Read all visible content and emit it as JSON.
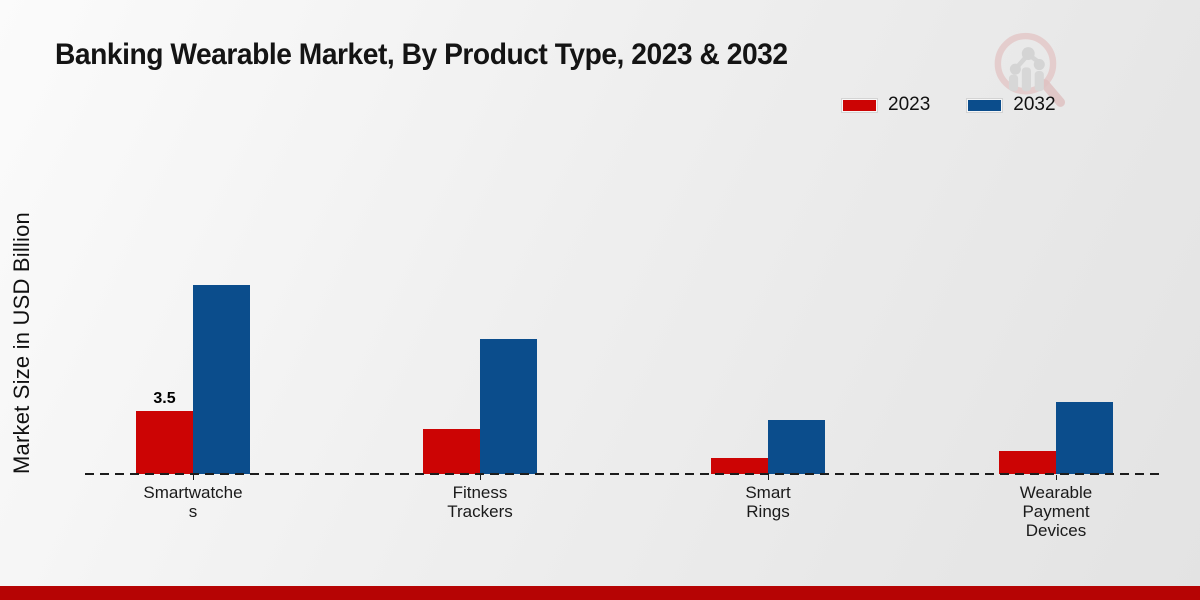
{
  "header": {
    "title": "Banking Wearable Market, By Product Type, 2023 & 2032"
  },
  "legend": {
    "items": [
      {
        "label": "2023",
        "color": "#cc0404"
      },
      {
        "label": "2032",
        "color": "#0b4d8c"
      }
    ]
  },
  "y_axis": {
    "title": "Market Size in USD Billion"
  },
  "chart_data": {
    "type": "bar",
    "title": "Banking Wearable Market, By Product Type, 2023 & 2032",
    "xlabel": "",
    "ylabel": "Market Size in USD Billion",
    "categories": [
      "Smartwatches",
      "Fitness Trackers",
      "Smart Rings",
      "Wearable Payment Devices"
    ],
    "category_display_lines": [
      [
        "Smartwatche",
        "s"
      ],
      [
        "Fitness",
        "Trackers"
      ],
      [
        "Smart",
        "Rings"
      ],
      [
        "Wearable",
        "Payment",
        "Devices"
      ]
    ],
    "series": [
      {
        "name": "2023",
        "color": "#cc0404",
        "values": [
          3.5,
          2.5,
          0.9,
          1.3
        ]
      },
      {
        "name": "2032",
        "color": "#0b4d8c",
        "values": [
          10.5,
          7.5,
          3.0,
          4.0
        ]
      }
    ],
    "data_labels": [
      {
        "category_index": 0,
        "series_index": 0,
        "text": "3.5"
      }
    ],
    "ylim": [
      0,
      11
    ],
    "grid": false,
    "legend_position": "top-right",
    "baseline_style": "dashed"
  },
  "footer": {
    "band_color": "#b60404"
  },
  "watermark": {
    "icon": "magnifier-bar-chart-logo"
  }
}
